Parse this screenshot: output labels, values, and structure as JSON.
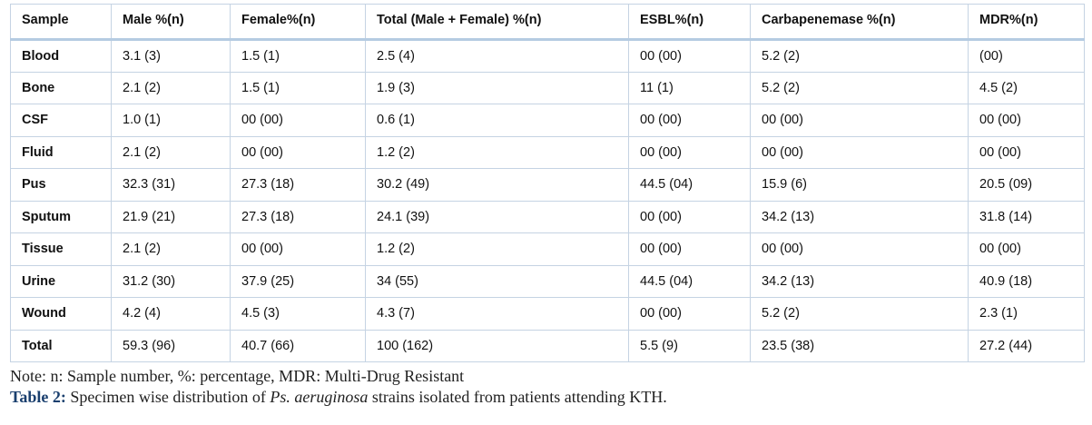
{
  "table": {
    "headers": [
      "Sample",
      "Male %(n)",
      "Female%(n)",
      "Total (Male + Female) %(n)",
      "ESBL%(n)",
      "Carbapenemase %(n)",
      "MDR%(n)"
    ],
    "rows": [
      [
        "Blood",
        "3.1 (3)",
        "1.5 (1)",
        "2.5 (4)",
        "00 (00)",
        "5.2 (2)",
        "(00)"
      ],
      [
        "Bone",
        "2.1 (2)",
        "1.5 (1)",
        "1.9 (3)",
        "11 (1)",
        "5.2 (2)",
        "4.5 (2)"
      ],
      [
        "CSF",
        "1.0 (1)",
        "00 (00)",
        "0.6 (1)",
        "00 (00)",
        "00 (00)",
        "00 (00)"
      ],
      [
        "Fluid",
        "2.1 (2)",
        "00 (00)",
        "1.2 (2)",
        "00 (00)",
        "00 (00)",
        "00 (00)"
      ],
      [
        "Pus",
        "32.3 (31)",
        "27.3 (18)",
        "30.2 (49)",
        "44.5 (04)",
        "15.9 (6)",
        "20.5 (09)"
      ],
      [
        "Sputum",
        "21.9 (21)",
        "27.3 (18)",
        "24.1 (39)",
        "00 (00)",
        "34.2 (13)",
        "31.8 (14)"
      ],
      [
        "Tissue",
        "2.1 (2)",
        "00 (00)",
        "1.2 (2)",
        "00 (00)",
        "00 (00)",
        "00 (00)"
      ],
      [
        "Urine",
        "31.2 (30)",
        "37.9 (25)",
        "34 (55)",
        "44.5 (04)",
        "34.2 (13)",
        "40.9 (18)"
      ],
      [
        "Wound",
        "4.2 (4)",
        "4.5 (3)",
        "4.3 (7)",
        "00 (00)",
        "5.2 (2)",
        "2.3 (1)"
      ],
      [
        "Total",
        "59.3 (96)",
        "40.7 (66)",
        "100 (162)",
        "5.5 (9)",
        "23.5 (38)",
        "27.2 (44)"
      ]
    ]
  },
  "note": "Note:  n: Sample number, %: percentage, MDR: Multi-Drug Resistant",
  "caption": {
    "label": "Table 2:",
    "text_before": " Specimen wise distribution of ",
    "italic": "Ps. aeruginosa",
    "text_after": " strains isolated from patients attending KTH."
  }
}
